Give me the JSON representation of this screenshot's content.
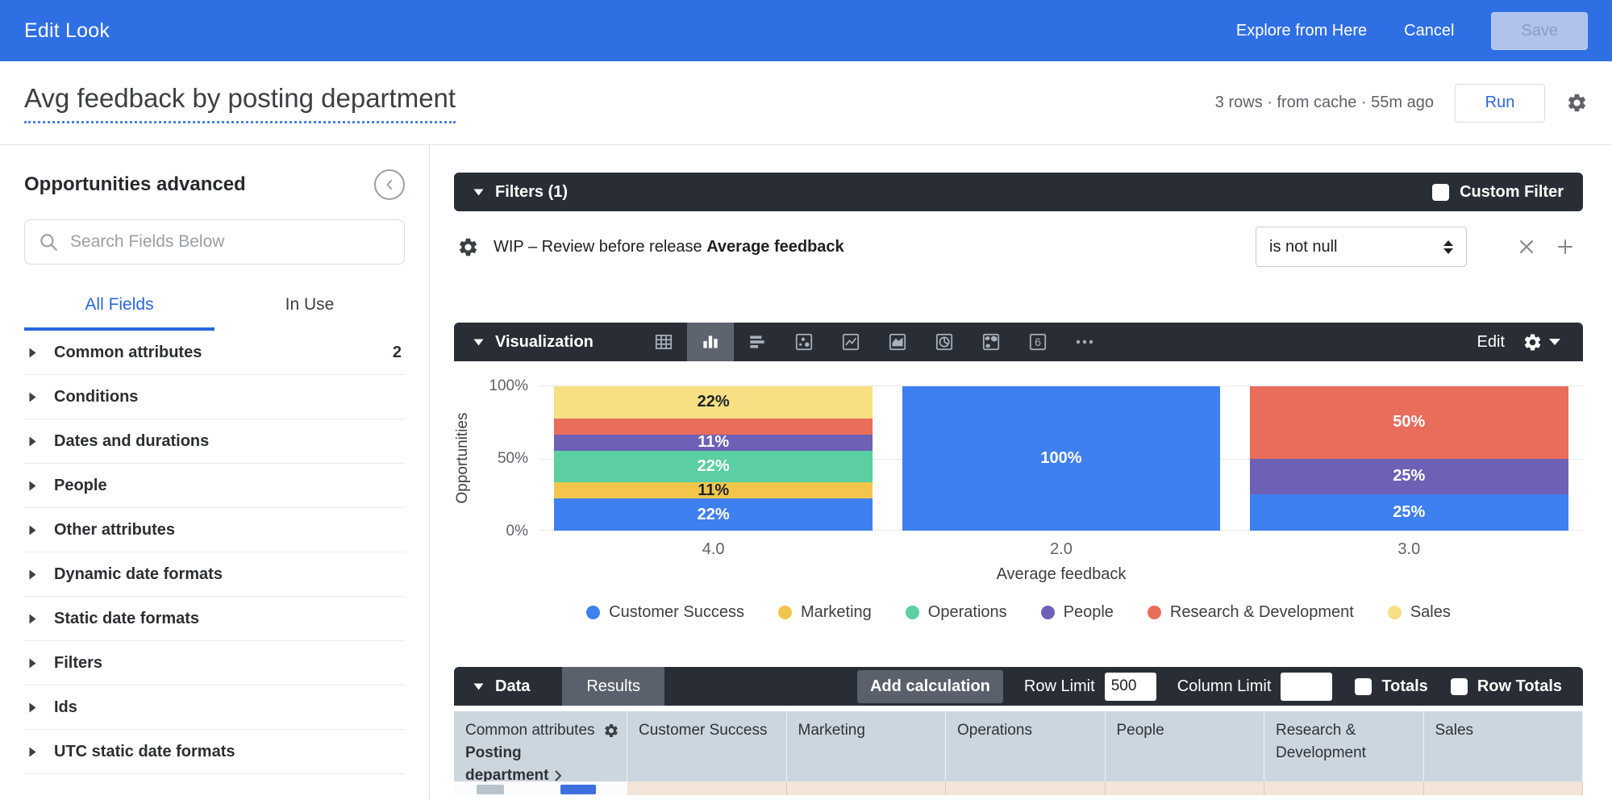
{
  "header": {
    "title": "Edit Look",
    "explore_label": "Explore from Here",
    "cancel_label": "Cancel",
    "save_label": "Save"
  },
  "look": {
    "title": "Avg feedback by posting department",
    "status": "3 rows · from cache · 55m ago",
    "run_label": "Run"
  },
  "sidebar": {
    "title": "Opportunities advanced",
    "search_placeholder": "Search Fields Below",
    "tabs": [
      {
        "label": "All Fields",
        "active": true
      },
      {
        "label": "In Use",
        "active": false
      }
    ],
    "items": [
      {
        "label": "Common attributes",
        "badge": "2"
      },
      {
        "label": "Conditions",
        "badge": ""
      },
      {
        "label": "Dates and durations",
        "badge": ""
      },
      {
        "label": "People",
        "badge": ""
      },
      {
        "label": "Other attributes",
        "badge": ""
      },
      {
        "label": "Dynamic date formats",
        "badge": ""
      },
      {
        "label": "Static date formats",
        "badge": ""
      },
      {
        "label": "Filters",
        "badge": ""
      },
      {
        "label": "Ids",
        "badge": ""
      },
      {
        "label": "UTC static date formats",
        "badge": ""
      }
    ]
  },
  "filters": {
    "title": "Filters (1)",
    "custom_filter_label": "Custom Filter",
    "row": {
      "field_prefix": "WIP – Review before release",
      "field_name": "Average feedback",
      "operator": "is not null"
    }
  },
  "visualization": {
    "title": "Visualization",
    "edit_label": "Edit",
    "icons": [
      "table",
      "column-chart",
      "bar-chart",
      "scatter",
      "line-chart",
      "area-chart",
      "pie-chart",
      "map",
      "single-value",
      "more"
    ],
    "selected_icon": "column-chart"
  },
  "chart_data": {
    "type": "bar",
    "stacked": true,
    "percent_axis": true,
    "categories": [
      "4.0",
      "2.0",
      "3.0"
    ],
    "series": [
      {
        "name": "Customer Success",
        "color": "#3F80F0",
        "values": [
          22,
          100,
          25
        ]
      },
      {
        "name": "Marketing",
        "color": "#F3C64B",
        "values": [
          11,
          0,
          0
        ]
      },
      {
        "name": "Operations",
        "color": "#5BCFA2",
        "values": [
          22,
          0,
          0
        ]
      },
      {
        "name": "People",
        "color": "#6D61B6",
        "values": [
          11,
          0,
          25
        ]
      },
      {
        "name": "Research & Development",
        "color": "#E96D5B",
        "values": [
          11,
          0,
          50
        ]
      },
      {
        "name": "Sales",
        "color": "#F7E083",
        "values": [
          22,
          0,
          0
        ]
      }
    ],
    "segment_labels": [
      [
        "22%",
        "11%",
        "22%",
        "11%",
        "",
        "22%"
      ],
      [
        "100%",
        "",
        "",
        "",
        "",
        ""
      ],
      [
        "25%",
        "",
        "",
        "25%",
        "50%",
        ""
      ]
    ],
    "dark_text_series": [
      "Marketing",
      "Sales"
    ],
    "xlabel": "Average feedback",
    "ylabel": "Opportunities",
    "yticks": [
      "100%",
      "50%",
      "0%"
    ],
    "ylim": [
      0,
      100
    ],
    "legend_position": "bottom"
  },
  "data_section": {
    "title": "Data",
    "results_tab": "Results",
    "add_calculation": "Add calculation",
    "row_limit_label": "Row Limit",
    "row_limit_value": "500",
    "column_limit_label": "Column Limit",
    "column_limit_value": "",
    "totals_label": "Totals",
    "row_totals_label": "Row Totals"
  },
  "table": {
    "dimension_group": "Common attributes",
    "dimension_field_line1": "Posting",
    "dimension_field_line2": "department",
    "columns": [
      "Customer Success",
      "Marketing",
      "Operations",
      "People",
      "Research & Development",
      "Sales"
    ]
  }
}
